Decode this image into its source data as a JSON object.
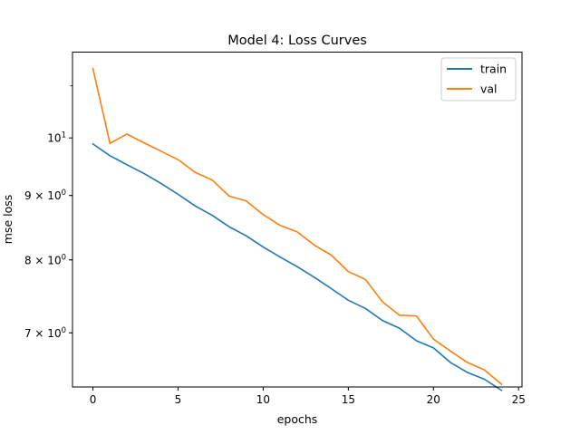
{
  "chart_data": {
    "type": "line",
    "title": "Model 4: Loss Curves",
    "xlabel": "epochs",
    "ylabel": "mse loss",
    "yscale": "log",
    "xlim": [
      -1.2,
      25.2
    ],
    "ylim": [
      6.34,
      11.7
    ],
    "x_ticks": [
      0,
      5,
      10,
      15,
      20,
      25
    ],
    "y_ticks": [
      {
        "value": 10,
        "base": "10",
        "exp": "1"
      },
      {
        "value": 9,
        "mant": "9",
        "base": "10",
        "exp": "0"
      },
      {
        "value": 8,
        "mant": "8",
        "base": "10",
        "exp": "0"
      },
      {
        "value": 7,
        "mant": "7",
        "base": "10",
        "exp": "0"
      }
    ],
    "legend_position": "top-right",
    "x": [
      0,
      1,
      2,
      3,
      4,
      5,
      6,
      7,
      8,
      9,
      10,
      11,
      12,
      13,
      14,
      15,
      16,
      17,
      18,
      19,
      20,
      21,
      22,
      23,
      24
    ],
    "series": [
      {
        "name": "train",
        "color": "#1f77b4",
        "values": [
          9.89,
          9.68,
          9.52,
          9.37,
          9.2,
          9.02,
          8.83,
          8.68,
          8.5,
          8.36,
          8.19,
          8.04,
          7.9,
          7.75,
          7.59,
          7.43,
          7.32,
          7.16,
          7.06,
          6.9,
          6.81,
          6.63,
          6.51,
          6.43,
          6.3
        ]
      },
      {
        "name": "val",
        "color": "#ff7f0e",
        "values": [
          11.35,
          9.9,
          10.07,
          9.91,
          9.76,
          9.61,
          9.39,
          9.26,
          8.99,
          8.91,
          8.69,
          8.52,
          8.42,
          8.22,
          8.07,
          7.83,
          7.72,
          7.41,
          7.23,
          7.22,
          6.92,
          6.77,
          6.63,
          6.54,
          6.37
        ]
      }
    ]
  }
}
